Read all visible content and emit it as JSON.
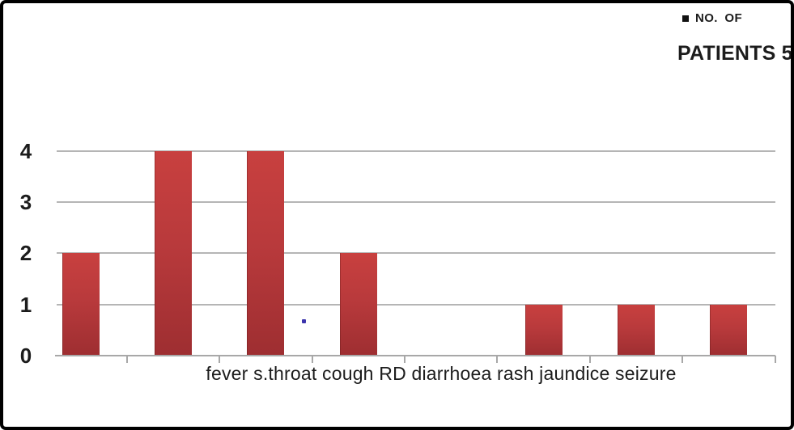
{
  "chart_data": {
    "type": "bar",
    "title": "",
    "categories": [
      "fever",
      "s.throat",
      "cough",
      "RD",
      "diarrhoea",
      "rash",
      "jaundice",
      "seizure"
    ],
    "values": [
      2,
      4,
      4,
      2,
      0,
      1,
      1,
      1
    ],
    "series": [
      {
        "name": "NO. OF PATIENTS 5",
        "values": [
          2,
          4,
          4,
          2,
          0,
          1,
          1,
          1
        ]
      }
    ],
    "x_axis_text": "fever s.throat cough RD diarrhoea rash jaundice seizure",
    "xlabel": "",
    "ylabel": "",
    "ylim": [
      0,
      4
    ],
    "yticks": [
      "0",
      "1",
      "2",
      "3",
      "4"
    ],
    "grid": "horizontal",
    "legend_position": "top-right"
  },
  "legend": {
    "line1": "NO. OF",
    "line2": "PATIENTS 5",
    "marker_icon": "black-square-icon"
  },
  "colors": {
    "bar_gradient_top": "#c8403f",
    "bar_gradient_mid": "#b93a3c",
    "bar_gradient_bottom": "#9e2e31",
    "gridline": "#b5b5b5",
    "axis": "#a8a8a8",
    "text": "#1c1c1c",
    "legend_marker": "#111111",
    "frame_border": "#000000",
    "background": "#ffffff",
    "stray_dot": "#3c35ad"
  }
}
